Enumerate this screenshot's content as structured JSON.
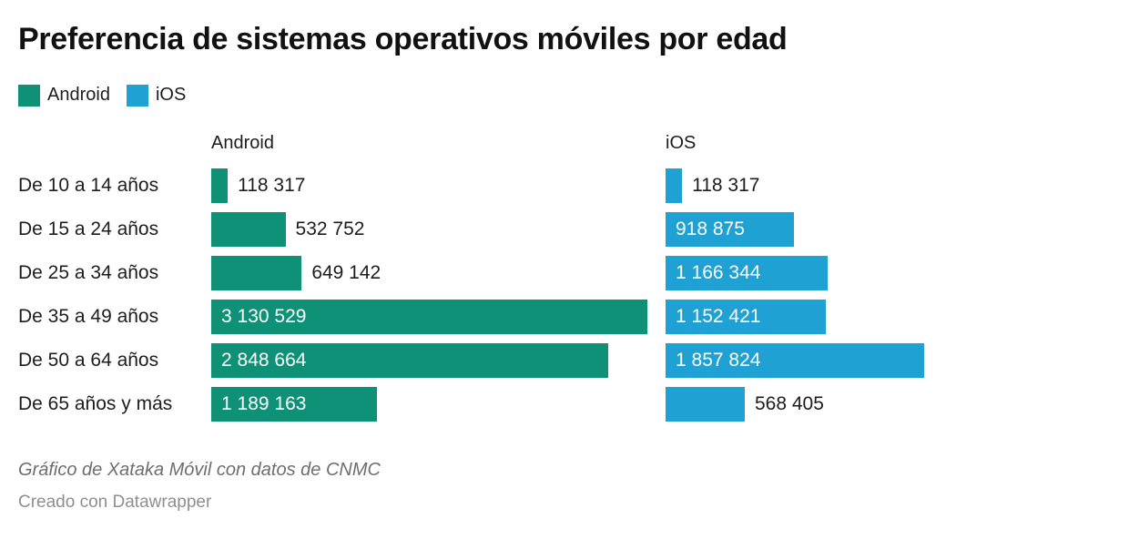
{
  "title": "Preferencia de sistemas operativos móviles por edad",
  "footer": {
    "source": "Gráfico de Xataka Móvil con datos de CNMC",
    "credit": "Creado con Datawrapper"
  },
  "chart_data": {
    "type": "bar",
    "orientation": "horizontal",
    "layout": "two-column-split-bars",
    "title": "Preferencia de sistemas operativos móviles por edad",
    "categories": [
      "De 10 a 14 años",
      "De 15 a 24 años",
      "De 25 a 34 años",
      "De 35 a 49 años",
      "De 50 a 64 años",
      "De 65 años y más"
    ],
    "series": [
      {
        "name": "Android",
        "color": "#0e9177",
        "values": [
          118317,
          532752,
          649142,
          3130529,
          2848664,
          1189163
        ],
        "value_labels": [
          "118 317",
          "532 752",
          "649 142",
          "3 130 529",
          "2 848 664",
          "1 189 163"
        ]
      },
      {
        "name": "iOS",
        "color": "#20a1d3",
        "values": [
          118317,
          918875,
          1166344,
          1152421,
          1857824,
          568405
        ],
        "value_labels": [
          "118 317",
          "918 875",
          "1 166 344",
          "1 152 421",
          "1 857 824",
          "568 405"
        ]
      }
    ],
    "xmax": 3130529,
    "xlabel": "",
    "ylabel": "",
    "grid": false,
    "legend_position": "top-left",
    "value_labels_shown": true
  }
}
